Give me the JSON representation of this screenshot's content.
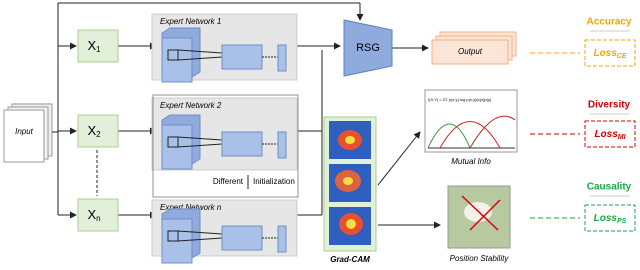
{
  "inputs": {
    "label": "Input"
  },
  "features": [
    {
      "label": "X",
      "sub": "1"
    },
    {
      "label": "X",
      "sub": "2"
    },
    {
      "label": "X",
      "sub": "n"
    }
  ],
  "experts": [
    {
      "title": "Expert Network 1"
    },
    {
      "title": "Expert Network 2"
    },
    {
      "title": "Expert Network n"
    }
  ],
  "init_note": {
    "left": "Different",
    "right": "Initialization"
  },
  "rsg": {
    "label": "RSG"
  },
  "output": {
    "label": "Output"
  },
  "gradcam": {
    "label": "Grad-CAM"
  },
  "mutual_info": {
    "label": "Mutual Info",
    "formula": "I(X;Y) = ΣΣ p(x,y) log p(x,y)/p(x)p(y)"
  },
  "position": {
    "label": "Position Stability"
  },
  "losses": [
    {
      "heading": "Accuracy",
      "label": "Loss",
      "sub": "CE",
      "color": "#f0a800"
    },
    {
      "heading": "Diversity",
      "label": "Loss",
      "sub": "MI",
      "color": "#d00000"
    },
    {
      "heading": "Causality",
      "label": "Loss",
      "sub": "PS",
      "color": "#1aa64a"
    }
  ]
}
